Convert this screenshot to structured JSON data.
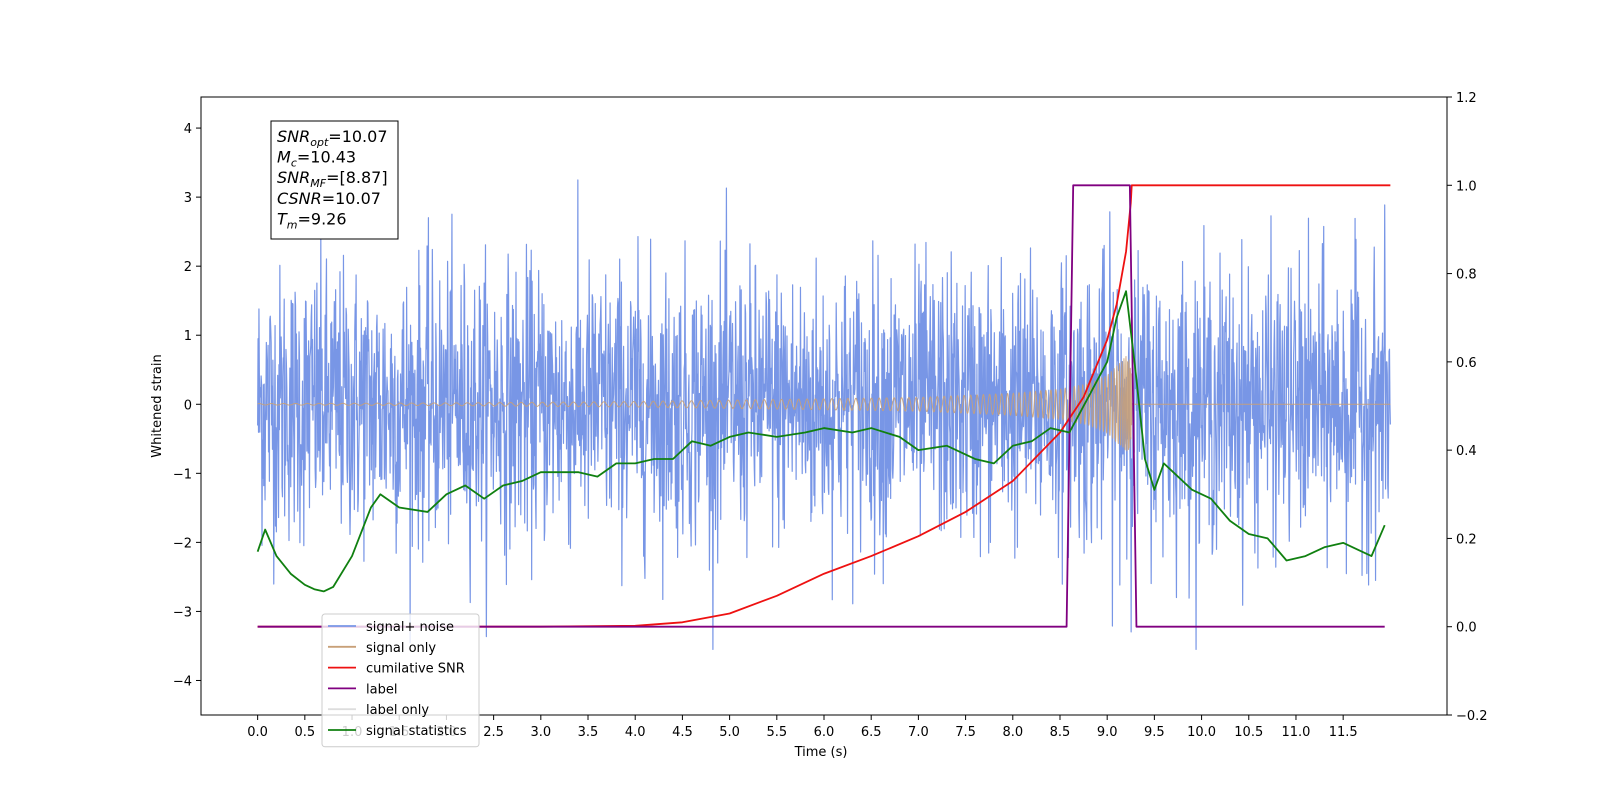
{
  "chart_data": {
    "type": "line",
    "xlabel": "Time (s)",
    "ylabel": "Whitened strain",
    "xlim": [
      -0.6,
      12.6
    ],
    "ylim_left": [
      -4.5,
      4.45
    ],
    "ylim_right": [
      -0.2,
      1.2
    ],
    "x_ticks": [
      0.0,
      0.5,
      1.0,
      1.5,
      2.0,
      2.5,
      3.0,
      3.5,
      4.0,
      4.5,
      5.0,
      5.5,
      6.0,
      6.5,
      7.0,
      7.5,
      8.0,
      8.5,
      9.0,
      9.5,
      10.0,
      10.5,
      11.0,
      11.5
    ],
    "x_tick_labels": [
      "0.0",
      "0.5",
      "1.0",
      "1.5",
      "2.0",
      "2.5",
      "3.0",
      "3.5",
      "4.0",
      "4.5",
      "5.0",
      "5.5",
      "6.0",
      "6.5",
      "7.0",
      "7.5",
      "8.0",
      "8.5",
      "9.0",
      "9.5",
      "10.0",
      "10.5",
      "11.0",
      "11.5"
    ],
    "y_left_ticks": [
      -4,
      -3,
      -2,
      -1,
      0,
      1,
      2,
      3,
      4
    ],
    "y_left_tick_labels": [
      "−4",
      "−3",
      "−2",
      "−1",
      "0",
      "1",
      "2",
      "3",
      "4"
    ],
    "y_right_ticks": [
      -0.2,
      0.0,
      0.2,
      0.4,
      0.6,
      0.8,
      1.0,
      1.2
    ],
    "y_right_tick_labels": [
      "−0.2",
      "0.0",
      "0.2",
      "0.4",
      "0.6",
      "0.8",
      "1.0",
      "1.2"
    ],
    "annotation": {
      "lines": [
        {
          "base": "SNR",
          "sub": "opt",
          "value": "=10.07"
        },
        {
          "base": "M",
          "sub": "c",
          "value": "=10.43"
        },
        {
          "base": "SNR",
          "sub": "MF",
          "value": "=[8.87]"
        },
        {
          "base": "CSNR",
          "sub": "",
          "value": "=10.07"
        },
        {
          "base": "T",
          "sub": "m",
          "value": "=9.26"
        }
      ]
    },
    "series": [
      {
        "name": "signal+ noise",
        "color": "#7896e6",
        "axis": "left",
        "style": "noise",
        "x_range": [
          0.0,
          12.0
        ],
        "envelope": {
          "x": [
            0.0,
            1.0,
            2.0,
            3.0,
            4.0,
            5.0,
            6.0,
            7.0,
            8.0,
            8.5,
            9.0,
            9.2,
            9.3,
            9.6,
            10.0,
            11.0,
            12.0
          ],
          "upper": [
            1.6,
            1.6,
            1.6,
            1.6,
            1.6,
            1.6,
            1.6,
            1.6,
            1.6,
            1.6,
            1.7,
            1.8,
            1.6,
            1.6,
            1.6,
            1.6,
            1.6
          ],
          "lower": [
            -1.6,
            -1.6,
            -1.6,
            -1.6,
            -1.6,
            -1.6,
            -1.6,
            -1.6,
            -1.6,
            -1.6,
            -1.7,
            -1.8,
            -1.6,
            -1.6,
            -1.6,
            -1.6,
            -1.6
          ]
        },
        "spike_max": 4.05,
        "spike_min": -3.55
      },
      {
        "name": "signal only",
        "color": "#c8a078",
        "axis": "left",
        "style": "chirp",
        "x_range": [
          0.0,
          12.0
        ],
        "merger_time": 9.26,
        "amplitude": {
          "x": [
            0.0,
            2.0,
            4.0,
            6.0,
            7.0,
            8.0,
            8.5,
            8.8,
            9.0,
            9.1,
            9.2,
            9.26,
            9.3,
            12.0
          ],
          "y": [
            0.01,
            0.02,
            0.04,
            0.08,
            0.1,
            0.16,
            0.22,
            0.3,
            0.42,
            0.55,
            0.7,
            0.6,
            0.0,
            0.0
          ]
        }
      },
      {
        "name": "cumilative SNR",
        "color": "#ee1111",
        "axis": "right",
        "style": "line",
        "x": [
          0.0,
          3.0,
          4.0,
          4.5,
          5.0,
          5.5,
          6.0,
          6.5,
          7.0,
          7.5,
          8.0,
          8.5,
          8.75,
          9.0,
          9.1,
          9.2,
          9.25,
          9.26,
          12.0
        ],
        "y": [
          0.0,
          0.0,
          0.002,
          0.01,
          0.03,
          0.07,
          0.12,
          0.16,
          0.205,
          0.26,
          0.33,
          0.44,
          0.52,
          0.65,
          0.73,
          0.85,
          0.96,
          1.0,
          1.0
        ]
      },
      {
        "name": "label",
        "color": "#800080",
        "axis": "right",
        "style": "line",
        "x": [
          0.0,
          8.57,
          8.64,
          9.24,
          9.31,
          11.94
        ],
        "y": [
          0.0,
          0.0,
          1.0,
          1.0,
          0.0,
          0.0
        ]
      },
      {
        "name": "label only",
        "color": "#dddddd",
        "axis": "right",
        "style": "legend-only",
        "x": [],
        "y": []
      },
      {
        "name": "signal statistics",
        "color": "#108010",
        "axis": "right",
        "style": "line",
        "x": [
          0.0,
          0.08,
          0.2,
          0.35,
          0.5,
          0.6,
          0.7,
          0.8,
          1.0,
          1.2,
          1.3,
          1.5,
          1.8,
          2.0,
          2.2,
          2.4,
          2.6,
          2.8,
          3.0,
          3.2,
          3.4,
          3.6,
          3.8,
          4.0,
          4.2,
          4.4,
          4.5,
          4.6,
          4.8,
          5.0,
          5.2,
          5.5,
          5.8,
          6.0,
          6.3,
          6.5,
          6.8,
          7.0,
          7.3,
          7.6,
          7.8,
          8.0,
          8.2,
          8.4,
          8.6,
          8.8,
          9.0,
          9.1,
          9.2,
          9.3,
          9.4,
          9.5,
          9.6,
          9.7,
          9.9,
          10.1,
          10.3,
          10.5,
          10.7,
          10.9,
          11.1,
          11.3,
          11.5,
          11.7,
          11.8,
          11.94
        ],
        "y": [
          0.17,
          0.22,
          0.16,
          0.12,
          0.095,
          0.085,
          0.08,
          0.09,
          0.16,
          0.27,
          0.3,
          0.27,
          0.26,
          0.3,
          0.32,
          0.29,
          0.32,
          0.33,
          0.35,
          0.35,
          0.35,
          0.34,
          0.37,
          0.37,
          0.38,
          0.38,
          0.4,
          0.42,
          0.41,
          0.43,
          0.44,
          0.43,
          0.44,
          0.45,
          0.44,
          0.45,
          0.43,
          0.4,
          0.41,
          0.38,
          0.37,
          0.41,
          0.42,
          0.45,
          0.44,
          0.52,
          0.6,
          0.7,
          0.76,
          0.58,
          0.38,
          0.31,
          0.37,
          0.35,
          0.31,
          0.29,
          0.24,
          0.21,
          0.2,
          0.15,
          0.16,
          0.18,
          0.19,
          0.17,
          0.16,
          0.23
        ]
      }
    ],
    "legend": {
      "placement": "lower-left",
      "entries": [
        "signal+ noise",
        "signal only",
        "cumilative SNR",
        "label",
        "label only",
        "signal statistics"
      ]
    },
    "grid": false
  }
}
